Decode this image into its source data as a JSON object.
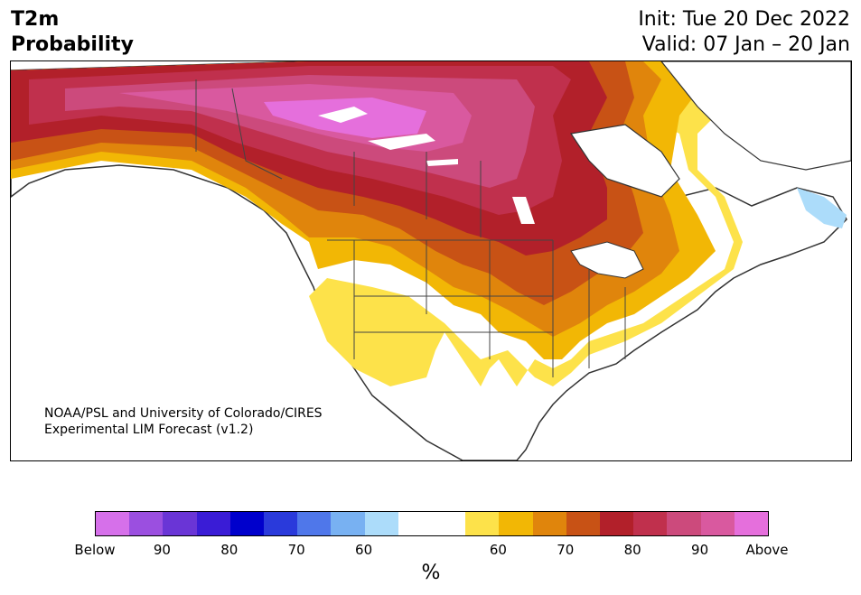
{
  "header": {
    "title_line1": "T2m",
    "title_line2": "Probability",
    "init_text": "Init: Tue 20 Dec 2022",
    "valid_text": "Valid: 07 Jan – 20 Jan"
  },
  "credit": {
    "line1": "NOAA/PSL and University of Colorado/CIRES",
    "line2": "Experimental LIM Forecast (v1.2)"
  },
  "colorbar": {
    "unit": "%",
    "colors": [
      "#d670ea",
      "#9b4fe0",
      "#6a35d6",
      "#3a1cd6",
      "#0000cc",
      "#2a3adb",
      "#4f77ea",
      "#78b1f2",
      "#acdcfa",
      "#ffffff",
      "#ffffff",
      "#fde24a",
      "#f2b705",
      "#e0850c",
      "#c85215",
      "#b2202a",
      "#c0304d",
      "#cc4a7c",
      "#d9599f",
      "#e56fdc"
    ],
    "tick_labels": [
      "Below",
      "90",
      "80",
      "70",
      "60",
      "60",
      "70",
      "80",
      "90",
      "Above"
    ]
  },
  "colors": {
    "ocean": "#ffffff",
    "coastline": "#333333",
    "border": "#444444"
  }
}
